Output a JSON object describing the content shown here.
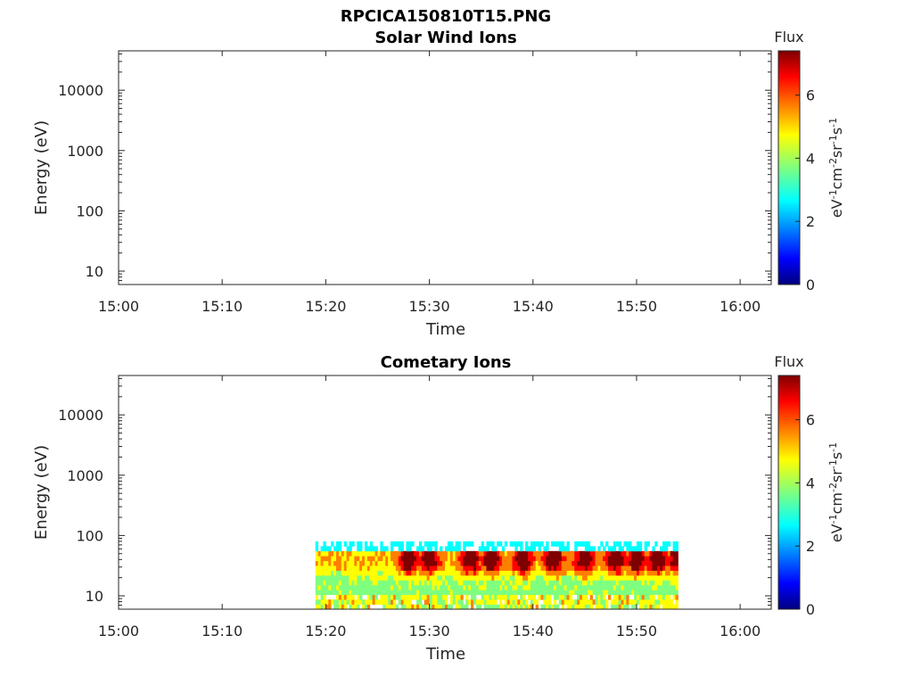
{
  "figure": {
    "filename_title": "RPCICA150810T15.PNG"
  },
  "colors": {
    "jet": [
      "#00007f",
      "#0000ff",
      "#007fff",
      "#00ffff",
      "#7fff7f",
      "#ffff00",
      "#ff7f00",
      "#ff0000",
      "#7f0000"
    ],
    "axes": "#262626"
  },
  "chart_data": [
    {
      "type": "heatmap",
      "title": "Solar Wind Ions",
      "xlabel": "Time",
      "ylabel": "Energy (eV)",
      "x_ticks": [
        "15:00",
        "15:10",
        "15:20",
        "15:30",
        "15:40",
        "15:50",
        "16:00"
      ],
      "y_ticks": [
        "10",
        "100",
        "1000",
        "10000"
      ],
      "y_scale": "log",
      "ylim": [
        6,
        45000
      ],
      "xlim": [
        "15:00",
        "16:03"
      ],
      "colorbar": {
        "title": "Flux",
        "unit_label": "eV-1cm-2sr-1s-1",
        "ticks": [
          "0",
          "2",
          "4",
          "6"
        ],
        "range": [
          0,
          7.4
        ]
      },
      "data": []
    },
    {
      "type": "heatmap",
      "title": "Cometary Ions",
      "xlabel": "Time",
      "ylabel": "Energy (eV)",
      "x_ticks": [
        "15:00",
        "15:10",
        "15:20",
        "15:30",
        "15:40",
        "15:50",
        "16:00"
      ],
      "y_ticks": [
        "10",
        "100",
        "1000",
        "10000"
      ],
      "y_scale": "log",
      "ylim": [
        6,
        45000
      ],
      "xlim": [
        "15:00",
        "16:03"
      ],
      "colorbar": {
        "title": "Flux",
        "unit_label": "eV-1cm-2sr-1s-1",
        "ticks": [
          "0",
          "2",
          "4",
          "6"
        ],
        "range": [
          0,
          7.4
        ]
      },
      "data": {
        "time_range": [
          "15:19",
          "15:54"
        ],
        "energy_range_eV": [
          6,
          80
        ],
        "description_values": {
          "peak_flux_times": [
            "15:28",
            "15:30",
            "15:34",
            "15:36",
            "15:39",
            "15:42",
            "15:45",
            "15:48",
            "15:50",
            "15:52",
            "15:54"
          ],
          "peak_flux": 7.0,
          "peak_energy_eV": 40,
          "low_energy_flux": 4.5,
          "high_energy_edge_flux": 2.5
        }
      }
    }
  ]
}
